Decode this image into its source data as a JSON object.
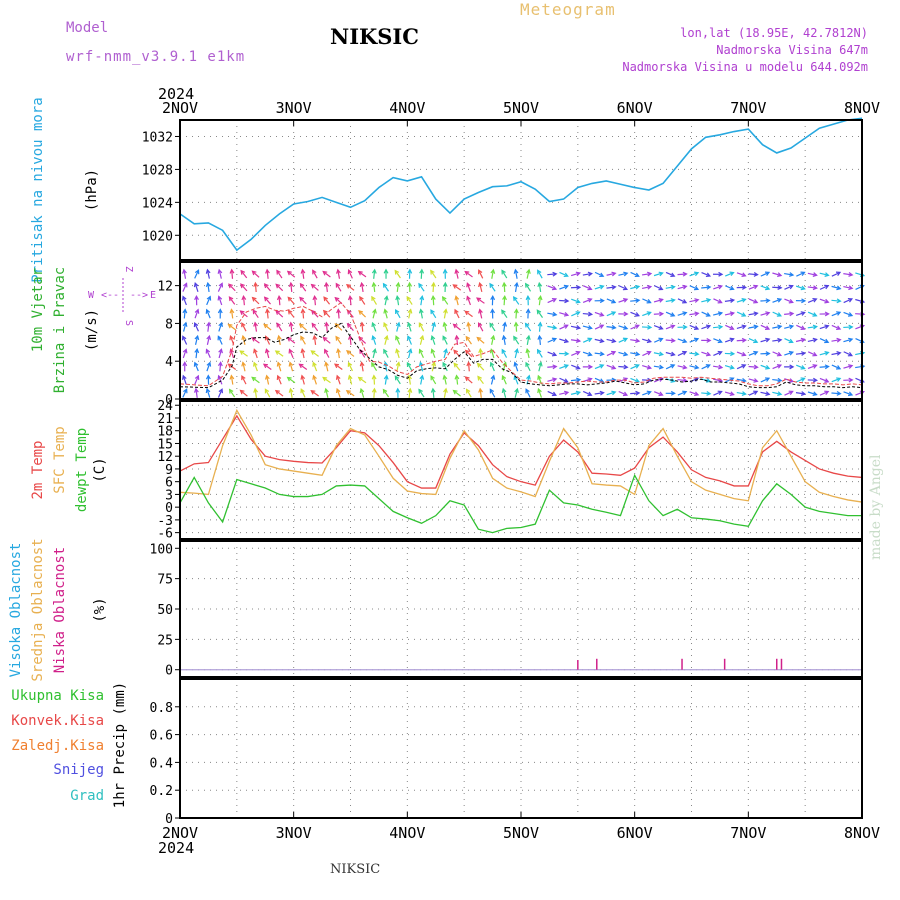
{
  "header": {
    "model_label": "Model",
    "model_name": "wrf-nmm_v3.9.1 e1km",
    "station": "NIKSIC",
    "product": "Meteogram",
    "coords": "lon,lat (18.95E, 42.7812N)",
    "altitude": "Nadmorska Visina 647m",
    "model_altitude": "Nadmorska Visina u modelu 644.092m"
  },
  "footer": {
    "station": "NIKSIC",
    "credit": "made by Angel"
  },
  "colors": {
    "pressure": "#27a8e0",
    "temp2m": "#e84848",
    "sfc": "#e8b050",
    "dewpt": "#30c030",
    "precip_total": "#30c030",
    "precip_conv": "#e84848",
    "precip_frozen": "#f08030",
    "snow": "#5050e0",
    "graupel": "#30c0c0",
    "high_cloud": "#27a8e0",
    "mid_cloud": "#e8b050",
    "low_cloud": "#d0208a",
    "wind_label": "#30b030",
    "compass": "#b040d0"
  },
  "chart_data": [
    {
      "type": "line",
      "panel": "pressure",
      "title": "Pritisak na nivou mora",
      "ylabel": "(hPa)",
      "year": "2024",
      "x_ticks": [
        "2NOV",
        "3NOV",
        "4NOV",
        "5NOV",
        "6NOV",
        "7NOV",
        "8NOV"
      ],
      "xlim": [
        0,
        144
      ],
      "ylim": [
        1017,
        1034
      ],
      "y_ticks": [
        1020,
        1024,
        1028,
        1032
      ],
      "grid": true,
      "x": [
        0,
        3,
        6,
        9,
        12,
        15,
        18,
        21,
        24,
        27,
        30,
        33,
        36,
        39,
        42,
        45,
        48,
        51,
        54,
        57,
        60,
        63,
        66,
        69,
        72,
        75,
        78,
        81,
        84,
        87,
        90,
        93,
        96,
        99,
        102,
        105,
        108,
        111,
        114,
        117,
        120,
        123,
        126,
        129,
        132,
        135,
        138,
        141,
        144
      ],
      "values": [
        1022.6,
        1021.4,
        1021.5,
        1020.6,
        1018.2,
        1019.5,
        1021.2,
        1022.6,
        1023.8,
        1024.1,
        1024.6,
        1024.0,
        1023.4,
        1024.2,
        1025.8,
        1027.0,
        1026.6,
        1027.1,
        1024.4,
        1022.7,
        1024.4,
        1025.2,
        1025.9,
        1026.0,
        1026.5,
        1025.6,
        1024.1,
        1024.4,
        1025.8,
        1026.3,
        1026.6,
        1026.2,
        1025.8,
        1025.5,
        1026.3,
        1028.4,
        1030.5,
        1031.9,
        1032.2,
        1032.6,
        1032.9,
        1031.0,
        1030.0,
        1030.6,
        1031.8,
        1033.0,
        1033.5,
        1034.0,
        1034.2
      ],
      "series": [
        {
          "name": "",
          "color": "#27a8e0"
        }
      ]
    },
    {
      "type": "line",
      "panel": "wind",
      "title": "10m Vjetar",
      "subtitle": "Brzina i Pravac",
      "ylabel": "(m/s)",
      "compass": {
        "n": "Z",
        "s": "S",
        "w": "W",
        "e": "E",
        "left": "<--",
        "right": "-->",
        "up": "^",
        "down": "v"
      },
      "compass_text": "W <-|-> E",
      "xlim": [
        0,
        144
      ],
      "ylim": [
        0,
        14.5
      ],
      "y_ticks": [
        0,
        4,
        8,
        12
      ],
      "grid": true,
      "series": [
        {
          "name": "speed",
          "color": "#000000",
          "x": [
            0,
            6,
            9,
            11,
            12,
            14,
            16,
            18,
            20,
            22,
            24,
            26,
            28,
            30,
            32,
            34,
            36,
            38,
            40,
            42,
            44,
            46,
            48,
            50,
            52,
            54,
            56,
            58,
            60,
            62,
            64,
            66,
            68,
            70,
            72,
            74,
            76,
            78,
            80,
            82,
            84,
            86,
            88,
            90,
            92,
            94,
            96,
            98,
            100,
            102,
            104,
            106,
            108,
            110,
            112,
            114,
            116,
            118,
            120,
            122,
            124,
            126,
            128,
            130,
            132,
            134,
            136,
            138,
            140,
            142,
            144
          ],
          "values": [
            1.3,
            1.2,
            2.0,
            3.5,
            5.5,
            6.3,
            6.5,
            6.5,
            6.0,
            6.3,
            6.8,
            7.1,
            7.0,
            6.5,
            7.5,
            8.0,
            6.6,
            5.2,
            4.3,
            3.4,
            3.1,
            2.5,
            2.2,
            3.0,
            3.2,
            3.3,
            3.2,
            4.2,
            5.0,
            3.8,
            4.2,
            4.2,
            3.2,
            2.8,
            1.8,
            1.6,
            1.5,
            1.4,
            1.5,
            1.6,
            1.6,
            1.5,
            1.6,
            1.7,
            1.9,
            1.7,
            1.5,
            1.6,
            2.0,
            2.1,
            2.0,
            1.8,
            1.9,
            2.1,
            1.8,
            1.8,
            1.7,
            1.6,
            1.3,
            1.2,
            1.2,
            1.3,
            1.8,
            1.5,
            1.4,
            1.4,
            1.3,
            1.3,
            1.2,
            1.3,
            1.2
          ]
        },
        {
          "name": "gust",
          "color": "#e84848",
          "x": [
            0,
            6,
            9,
            11,
            12,
            14,
            16,
            18,
            20,
            22,
            24,
            26,
            28,
            30,
            32,
            34,
            36,
            38,
            40,
            42,
            44,
            46,
            48,
            50,
            52,
            54,
            56,
            58,
            60,
            62,
            64,
            66,
            68,
            70,
            72,
            74,
            76,
            78,
            80,
            82,
            84,
            86,
            88,
            90,
            92,
            94,
            96,
            98,
            100,
            102,
            104,
            106,
            108,
            110,
            112,
            114,
            116,
            118,
            120,
            122,
            124,
            126,
            128,
            130,
            132,
            134,
            136,
            138,
            140,
            142,
            144
          ],
          "values": [
            1.6,
            1.4,
            2.4,
            5.2,
            7.8,
            9.2,
            9.6,
            9.8,
            9.4,
            9.3,
            9.6,
            9.8,
            9.3,
            8.7,
            9.5,
            10.2,
            9.0,
            6.5,
            4.0,
            3.9,
            3.5,
            2.9,
            2.6,
            3.4,
            3.7,
            4.0,
            4.2,
            5.8,
            6.0,
            4.5,
            4.8,
            5.2,
            3.9,
            2.9,
            2.0,
            1.9,
            1.7,
            1.6,
            1.7,
            1.7,
            1.8,
            1.9,
            1.8,
            1.8,
            2.0,
            2.0,
            1.7,
            1.8,
            2.2,
            2.3,
            2.3,
            2.3,
            2.2,
            2.3,
            2.2,
            2.1,
            2.0,
            1.9,
            1.6,
            1.4,
            1.4,
            1.6,
            2.1,
            1.8,
            1.7,
            1.7,
            1.6,
            1.6,
            1.5,
            1.6,
            1.5
          ]
        }
      ],
      "arrows": {
        "x_step_hours": 2.5,
        "levels": [
          0.6,
          2.0,
          3.4,
          4.8,
          6.2,
          7.6,
          9.0,
          10.4,
          11.8,
          13.2
        ],
        "regimes": [
          {
            "from": 0,
            "to": 10,
            "dir_deg": 0,
            "speed": 1.5
          },
          {
            "from": 10,
            "to": 40,
            "dir_deg": 330,
            "speed": 9.0
          },
          {
            "from": 40,
            "to": 58,
            "dir_deg": 350,
            "speed": 5.0
          },
          {
            "from": 58,
            "to": 64,
            "dir_deg": 330,
            "speed": 8.5
          },
          {
            "from": 64,
            "to": 78,
            "dir_deg": 350,
            "speed": 4.0
          },
          {
            "from": 78,
            "to": 144,
            "dir_deg": 90,
            "speed": 1.8
          }
        ]
      }
    },
    {
      "type": "line",
      "panel": "temperature",
      "labels": [
        "2m Temp",
        "SFC Temp",
        "dewpt Temp"
      ],
      "ylabel": "(C)",
      "xlim": [
        0,
        144
      ],
      "ylim": [
        -7.5,
        25
      ],
      "y_ticks": [
        -6,
        -3,
        0,
        3,
        6,
        9,
        12,
        15,
        18,
        21,
        24
      ],
      "grid": true,
      "x": [
        0,
        3,
        6,
        9,
        12,
        15,
        18,
        21,
        24,
        27,
        30,
        33,
        36,
        39,
        42,
        45,
        48,
        51,
        54,
        57,
        60,
        63,
        66,
        69,
        72,
        75,
        78,
        81,
        84,
        87,
        90,
        93,
        96,
        99,
        102,
        105,
        108,
        111,
        114,
        117,
        120,
        123,
        126,
        129,
        132,
        135,
        138,
        141,
        144
      ],
      "series": [
        {
          "name": "2m Temp",
          "color": "#e84848",
          "values": [
            8.5,
            10.2,
            10.5,
            16.0,
            21.5,
            16.0,
            12.0,
            11.2,
            10.8,
            10.5,
            10.4,
            14.0,
            18.0,
            17.5,
            14.5,
            10.5,
            6.0,
            4.5,
            4.5,
            12.5,
            17.5,
            14.5,
            10.0,
            7.2,
            6.0,
            5.2,
            12.0,
            15.8,
            13.0,
            8.0,
            7.8,
            7.5,
            9.2,
            14.0,
            16.5,
            13.0,
            8.8,
            7.0,
            6.2,
            5.0,
            5.0,
            13.0,
            15.5,
            13.0,
            11.0,
            9.0,
            8.0,
            7.3,
            7.0
          ]
        },
        {
          "name": "SFC Temp",
          "color": "#e8b050",
          "values": [
            3.5,
            3.3,
            3.0,
            14.5,
            22.8,
            17.0,
            10.0,
            9.0,
            8.5,
            8.0,
            7.5,
            14.5,
            18.5,
            17.0,
            12.0,
            6.8,
            3.8,
            3.2,
            3.0,
            11.5,
            18.0,
            13.5,
            6.8,
            4.5,
            3.6,
            2.5,
            10.8,
            18.5,
            14.0,
            5.5,
            5.2,
            5.0,
            3.0,
            14.5,
            18.5,
            12.0,
            6.0,
            4.0,
            3.0,
            2.0,
            1.5,
            14.0,
            18.0,
            12.0,
            6.0,
            3.5,
            2.5,
            1.7,
            1.2
          ]
        },
        {
          "name": "dewpt Temp",
          "color": "#30c030",
          "values": [
            1.0,
            7.0,
            1.0,
            -3.5,
            6.5,
            5.5,
            4.5,
            3.0,
            2.5,
            2.5,
            3.0,
            5.0,
            5.2,
            5.0,
            2.0,
            -1.0,
            -2.5,
            -3.8,
            -2.0,
            1.5,
            0.5,
            -5.2,
            -6.0,
            -5.0,
            -4.8,
            -4.0,
            4.0,
            1.0,
            0.5,
            -0.5,
            -1.2,
            -2.0,
            7.5,
            1.5,
            -2.0,
            -0.5,
            -2.5,
            -2.8,
            -3.2,
            -4.0,
            -4.5,
            1.5,
            5.5,
            3.0,
            0.0,
            -1.0,
            -1.5,
            -2.0,
            -2.0
          ]
        }
      ]
    },
    {
      "type": "bar",
      "panel": "cloud",
      "labels": [
        "Visoka Oblacnost",
        "Srednja Oblacnost",
        "Niska Oblacnost"
      ],
      "ylabel": "(%)",
      "xlim": [
        0,
        144
      ],
      "ylim": [
        -6,
        106
      ],
      "y_ticks": [
        0,
        25,
        50,
        75,
        100
      ],
      "grid": true,
      "series": [
        {
          "name": "Niska Oblacnost",
          "color": "#d0208a",
          "x": [
            84,
            88,
            106,
            115,
            126,
            127
          ],
          "values": [
            8,
            9,
            9,
            9,
            9,
            9
          ]
        }
      ]
    },
    {
      "type": "bar",
      "panel": "precip",
      "labels": [
        "Ukupna Kisa",
        "Konvek.Kisa",
        "Zaledj.Kisa",
        "Snijeg",
        "Grad"
      ],
      "ylabel": "1hr Precip (mm)",
      "xlim": [
        0,
        144
      ],
      "ylim": [
        0,
        1.0
      ],
      "y_ticks": [
        0,
        0.2,
        0.4,
        0.6,
        0.8
      ],
      "grid": true,
      "series": []
    }
  ]
}
